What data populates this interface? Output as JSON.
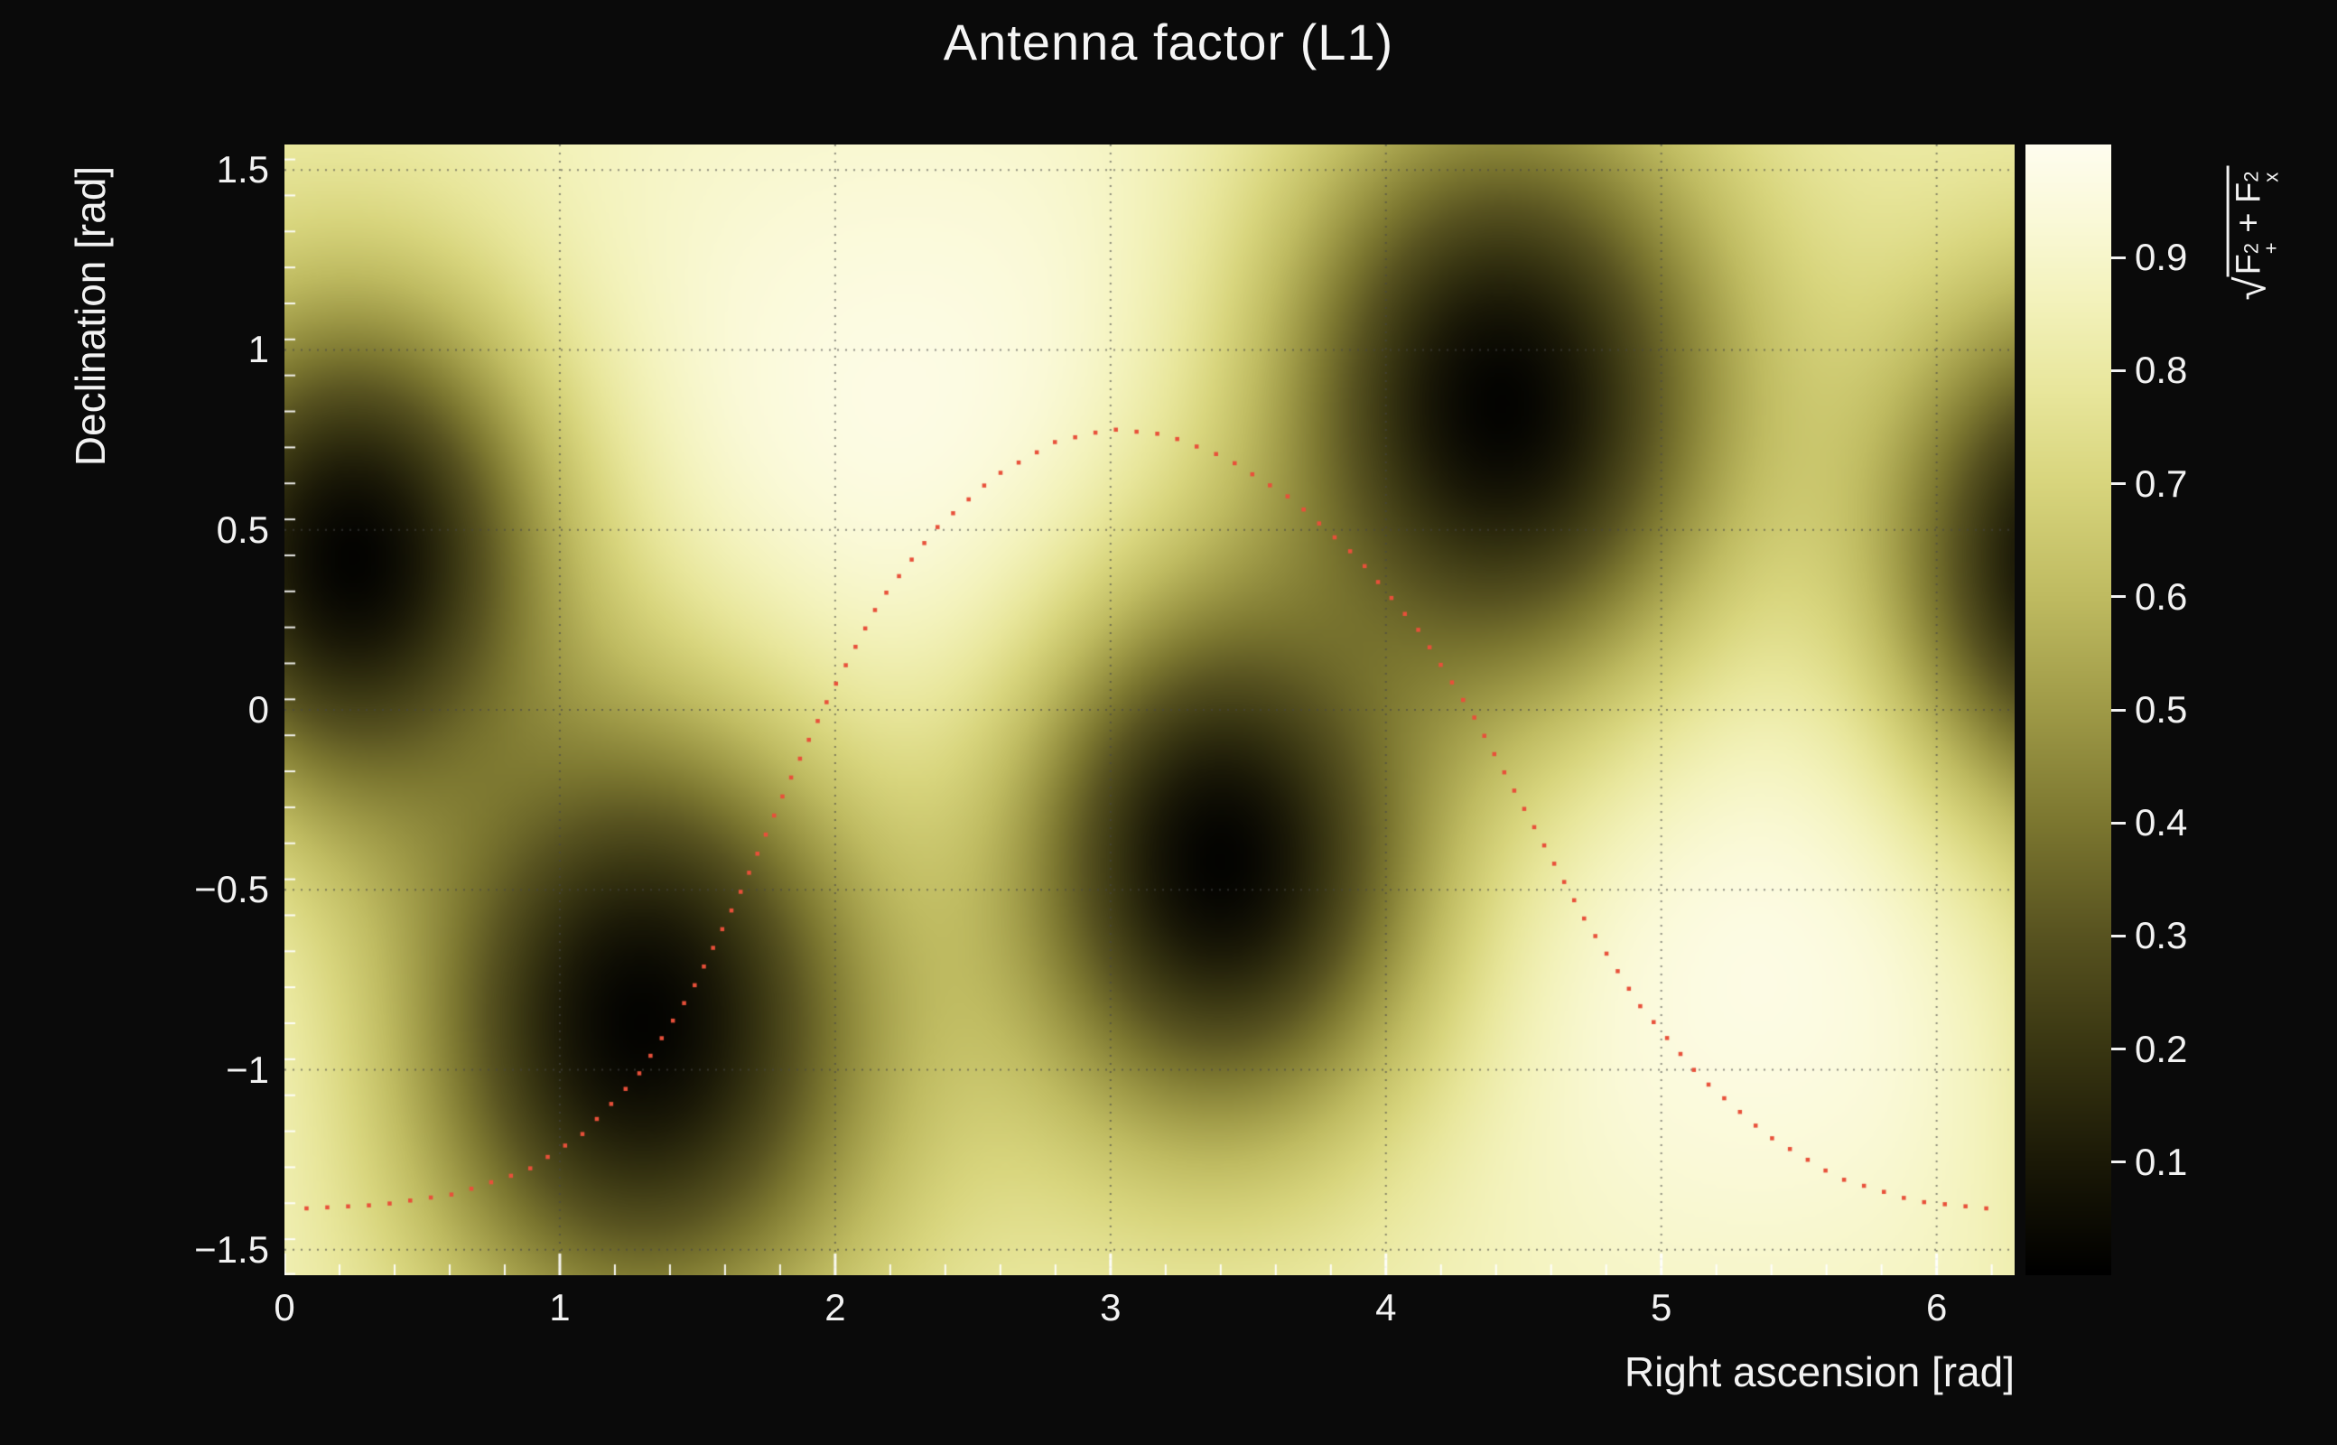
{
  "title": "Antenna factor (L1)",
  "x_axis": {
    "label": "Right ascension [rad]",
    "min": 0,
    "max": 6.2832,
    "major_values": [
      0,
      1,
      2,
      3,
      4,
      5,
      6
    ],
    "major_labels": [
      "0",
      "1",
      "2",
      "3",
      "4",
      "5",
      "6"
    ],
    "minor_step": 0.2
  },
  "y_axis": {
    "label": "Declination [rad]",
    "min": -1.5708,
    "max": 1.5708,
    "major_values": [
      1.5,
      1,
      0.5,
      0,
      -0.5,
      -1,
      -1.5
    ],
    "major_labels": [
      "1.5",
      "1",
      "0.5",
      "0",
      "−0.5",
      "−1",
      "−1.5"
    ],
    "minor_step": 0.1
  },
  "colorbar": {
    "min": 0,
    "max": 1,
    "tick_values": [
      0.9,
      0.8,
      0.7,
      0.6,
      0.5,
      0.4,
      0.3,
      0.2,
      0.1
    ],
    "tick_labels": [
      "0.9",
      "0.8",
      "0.7",
      "0.6",
      "0.5",
      "0.4",
      "0.3",
      "0.2",
      "0.1"
    ],
    "label": {
      "sqrt": "√",
      "t1_base": "F",
      "t1_sub": "+",
      "t1_sup": "2",
      "plus": " + ",
      "t2_base": "F",
      "t2_sub": "x",
      "t2_sup": "2"
    },
    "colormap": [
      [
        0.0,
        "#000000"
      ],
      [
        0.1,
        "#1b1907"
      ],
      [
        0.2,
        "#393612"
      ],
      [
        0.3,
        "#585320"
      ],
      [
        0.4,
        "#7c7730"
      ],
      [
        0.5,
        "#9f9a47"
      ],
      [
        0.6,
        "#bfbb61"
      ],
      [
        0.7,
        "#d8d57d"
      ],
      [
        0.78,
        "#e8e69b"
      ],
      [
        0.86,
        "#f3f2bb"
      ],
      [
        0.93,
        "#faf9d7"
      ],
      [
        1.0,
        "#fffdef"
      ]
    ]
  },
  "chart_data": {
    "type": "heatmap",
    "title": "Antenna factor (L1)",
    "xlabel": "Right ascension [rad]",
    "ylabel": "Declination [rad]",
    "zlabel": "sqrt(F_+^2 + F_x^2)",
    "x_range": [
      0,
      6.2832
    ],
    "y_range": [
      -1.5708,
      1.5708
    ],
    "z_range": [
      0,
      1
    ],
    "grid": {
      "show": true,
      "style": "dotted",
      "color": "rgba(70,70,70,0.6)"
    },
    "field_model": {
      "base": 0.84,
      "x_wrap": 6.2832,
      "dip_depth": 0.985,
      "maxima": [
        {
          "x": 2.35,
          "y": 0.6,
          "amp": 0.15,
          "sx": 1.15,
          "sy": 0.85
        },
        {
          "x": 5.4,
          "y": -0.5,
          "amp": 0.15,
          "sx": 1.1,
          "sy": 0.8
        }
      ],
      "minima": [
        {
          "x": 0.25,
          "y": 0.42,
          "sigma": 0.52
        },
        {
          "x": 1.3,
          "y": -0.87,
          "sigma": 0.62
        },
        {
          "x": 3.4,
          "y": -0.42,
          "sigma": 0.55
        },
        {
          "x": 4.42,
          "y": 0.85,
          "sigma": 0.6
        }
      ]
    },
    "overlay_curve": {
      "marker": "dot",
      "color": "#e8503a",
      "n_dots": 118,
      "points": [
        [
          0.08,
          -1.385
        ],
        [
          0.35,
          -1.375
        ],
        [
          0.62,
          -1.345
        ],
        [
          0.88,
          -1.28
        ],
        [
          1.08,
          -1.18
        ],
        [
          1.28,
          -1.02
        ],
        [
          1.48,
          -0.78
        ],
        [
          1.66,
          -0.5
        ],
        [
          1.82,
          -0.22
        ],
        [
          1.98,
          0.04
        ],
        [
          2.16,
          0.3
        ],
        [
          2.36,
          0.5
        ],
        [
          2.58,
          0.65
        ],
        [
          2.8,
          0.745
        ],
        [
          3.0,
          0.78
        ],
        [
          3.2,
          0.765
        ],
        [
          3.42,
          0.7
        ],
        [
          3.66,
          0.585
        ],
        [
          3.9,
          0.42
        ],
        [
          4.12,
          0.22
        ],
        [
          4.32,
          -0.02
        ],
        [
          4.52,
          -0.3
        ],
        [
          4.72,
          -0.58
        ],
        [
          4.92,
          -0.82
        ],
        [
          5.14,
          -1.02
        ],
        [
          5.38,
          -1.18
        ],
        [
          5.64,
          -1.3
        ],
        [
          5.92,
          -1.365
        ],
        [
          6.18,
          -1.385
        ]
      ]
    }
  }
}
